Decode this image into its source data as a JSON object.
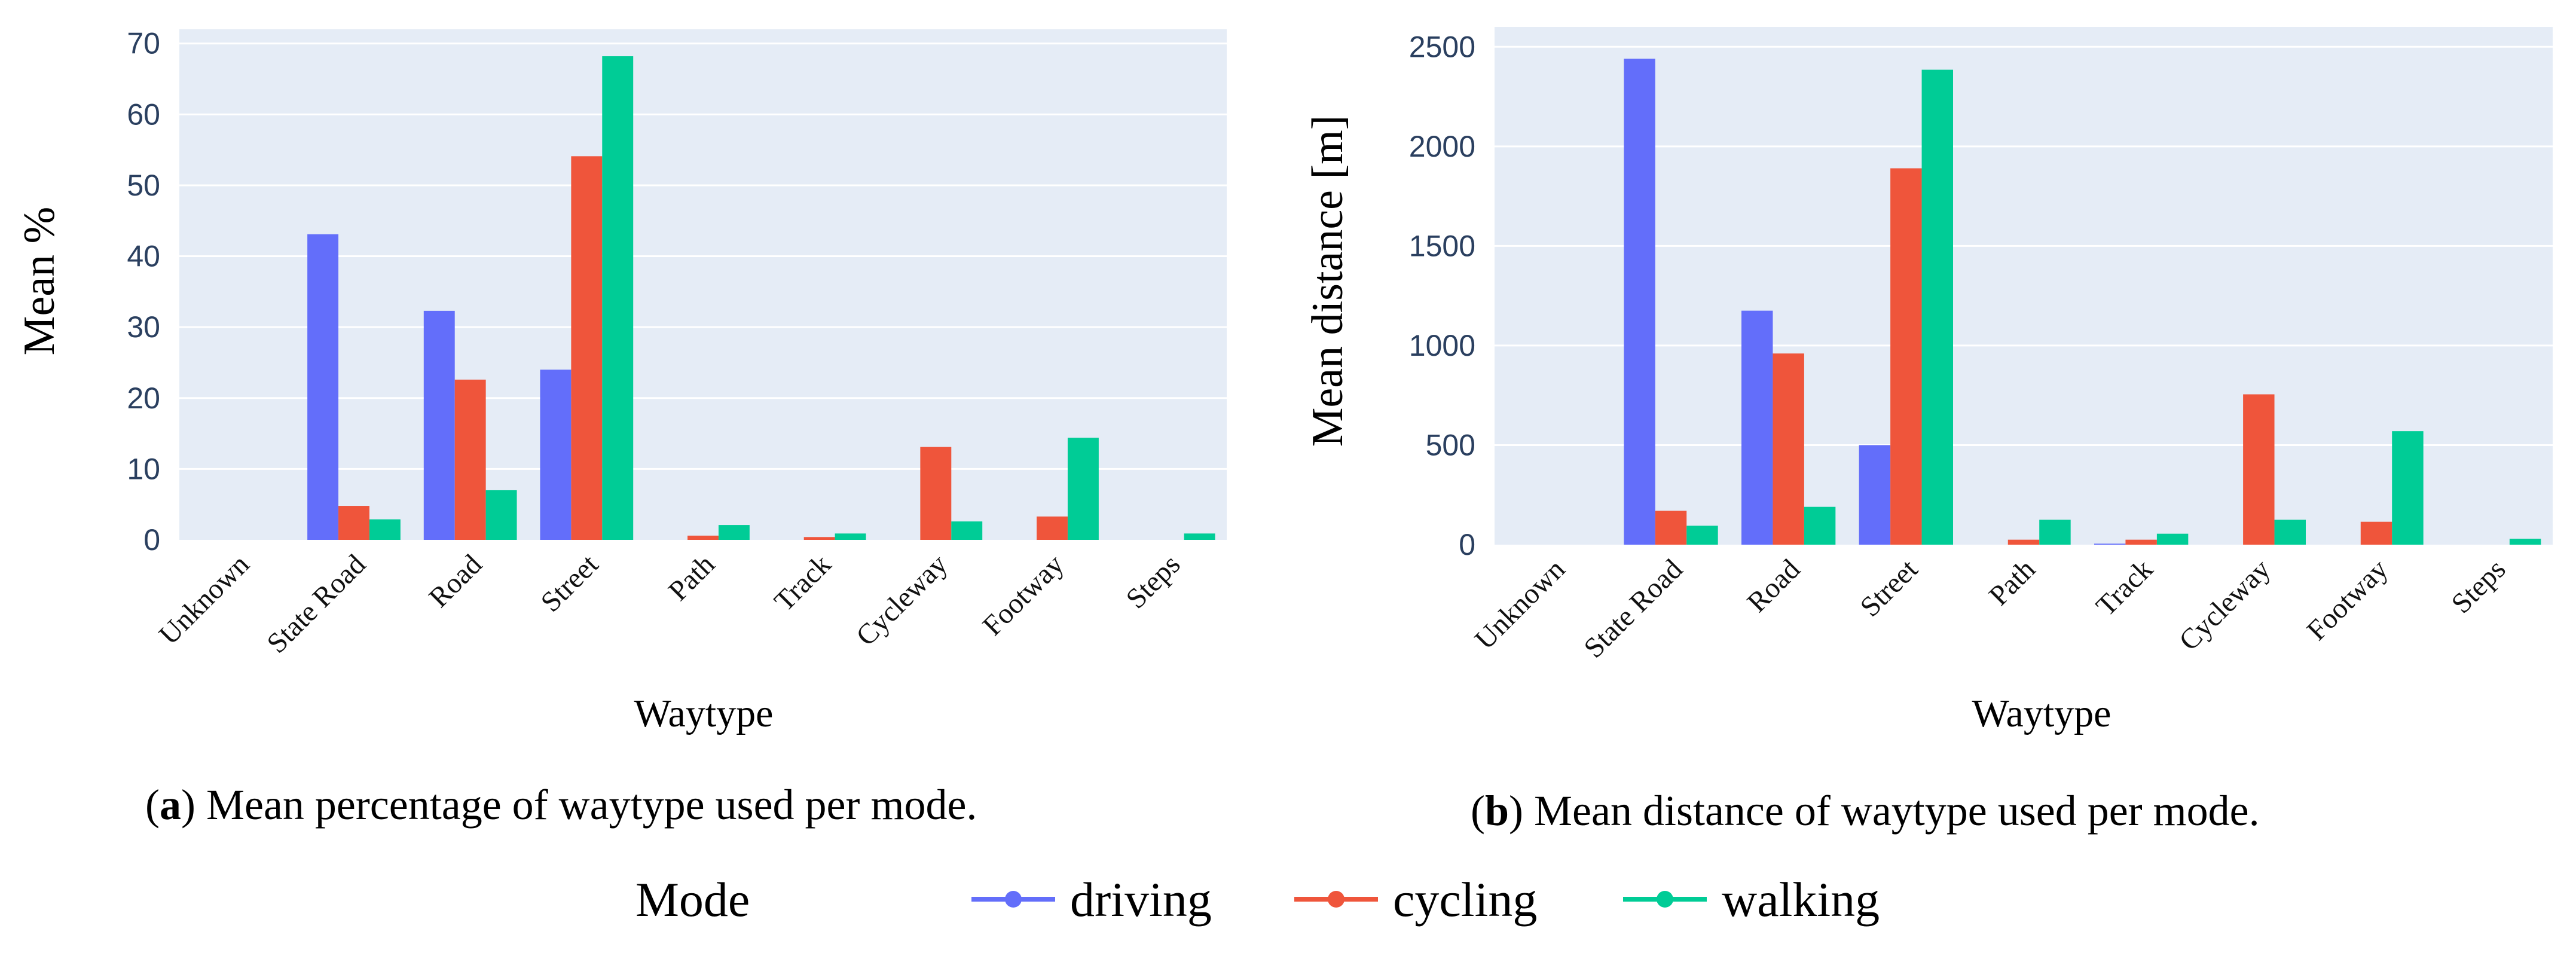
{
  "chart_data": [
    {
      "type": "bar",
      "categories": [
        "Unknown",
        "State Road",
        "Road",
        "Street",
        "Path",
        "Track",
        "Cycleway",
        "Footway",
        "Steps"
      ],
      "series": [
        {
          "name": "driving",
          "color": "#636efa",
          "values": [
            0,
            43.1,
            32.3,
            24,
            0,
            0,
            0,
            0,
            0
          ]
        },
        {
          "name": "cycling",
          "color": "#ef553b",
          "values": [
            0,
            4.8,
            22.6,
            54.1,
            0.6,
            0.4,
            13.1,
            3.3,
            0
          ]
        },
        {
          "name": "walking",
          "color": "#00cc96",
          "values": [
            0,
            2.9,
            7,
            68.2,
            2.1,
            0.9,
            2.6,
            14.4,
            0.9
          ]
        }
      ],
      "xlabel": "Waytype",
      "ylabel": "Mean %",
      "ylim": [
        0,
        72
      ],
      "yticks": [
        0,
        10,
        20,
        30,
        40,
        50,
        60,
        70
      ],
      "grid": true,
      "caption_letter": "a",
      "caption_text": "Mean percentage of waytype used per mode."
    },
    {
      "type": "bar",
      "categories": [
        "Unknown",
        "State Road",
        "Road",
        "Street",
        "Path",
        "Track",
        "Cycleway",
        "Footway",
        "Steps"
      ],
      "series": [
        {
          "name": "driving",
          "color": "#636efa",
          "values": [
            0,
            2440,
            1175,
            500,
            0,
            5,
            0,
            0,
            0
          ]
        },
        {
          "name": "cycling",
          "color": "#ef553b",
          "values": [
            0,
            170,
            960,
            1890,
            25,
            25,
            755,
            115,
            0
          ]
        },
        {
          "name": "walking",
          "color": "#00cc96",
          "values": [
            0,
            95,
            190,
            2385,
            125,
            55,
            125,
            570,
            30
          ]
        }
      ],
      "xlabel": "Waytype",
      "ylabel": "Mean distance [m]",
      "ylim": [
        0,
        2600
      ],
      "yticks": [
        0,
        500,
        1000,
        1500,
        2000,
        2500
      ],
      "grid": true,
      "caption_letter": "b",
      "caption_text": "Mean distance of waytype used per mode."
    }
  ],
  "legend": {
    "title": "Mode",
    "items": [
      {
        "label": "driving",
        "color": "#636efa"
      },
      {
        "label": "cycling",
        "color": "#ef553b"
      },
      {
        "label": "walking",
        "color": "#00cc96"
      }
    ]
  }
}
